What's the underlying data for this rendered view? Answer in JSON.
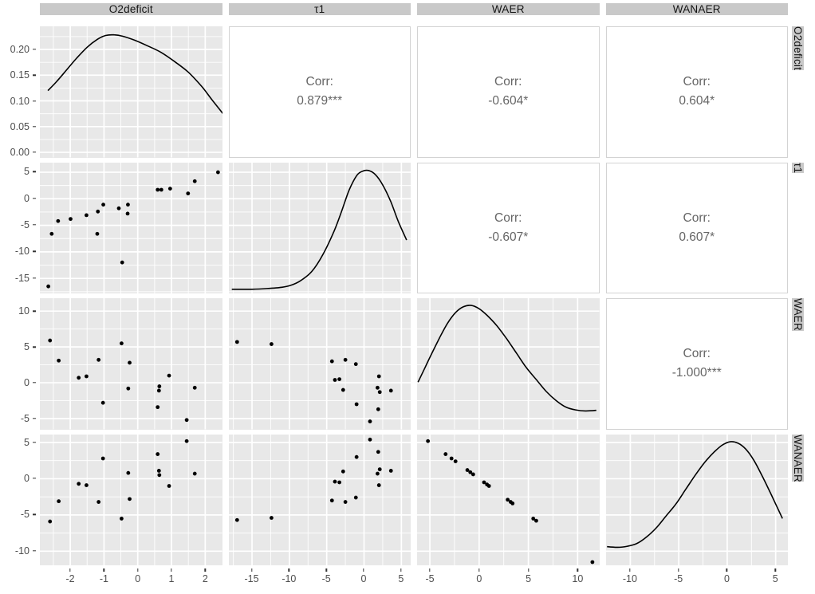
{
  "colors": {
    "panel_bg": "#E8E8E8",
    "strip_bg": "#C9C9C9",
    "grid": "#FFFFFF",
    "point": "#000000",
    "density_line": "#000000",
    "corr_text": "#666666",
    "axis_text": "#4D4D4D",
    "strip_text": "#141414",
    "corr_border": "#D3D3D3",
    "tick_mark": "#333333"
  },
  "chart_data": {
    "type": "scatter",
    "subtype": "scatterplot-matrix-ggpairs",
    "title": "",
    "variables": [
      "O2deficit",
      "τ1",
      "WAER",
      "WANAER"
    ],
    "legend": "none",
    "grid": "on",
    "corr_prefix": "Corr:",
    "correlations": [
      {
        "pair": [
          "O2deficit",
          "τ1"
        ],
        "value": "0.879***"
      },
      {
        "pair": [
          "O2deficit",
          "WAER"
        ],
        "value": "-0.604*"
      },
      {
        "pair": [
          "O2deficit",
          "WANAER"
        ],
        "value": "0.604*"
      },
      {
        "pair": [
          "τ1",
          "WAER"
        ],
        "value": "-0.607*"
      },
      {
        "pair": [
          "τ1",
          "WANAER"
        ],
        "value": "0.607*"
      },
      {
        "pair": [
          "WAER",
          "WANAER"
        ],
        "value": "-1.000***"
      }
    ],
    "columns": [
      {
        "var": "O2deficit",
        "range": [
          -2.9,
          2.5
        ],
        "ticks": [
          -2,
          -1,
          0,
          1,
          2
        ],
        "tick_labels": [
          "-2",
          "-1",
          "0",
          "1",
          "2"
        ]
      },
      {
        "var": "τ1",
        "range": [
          -18.1,
          6.3
        ],
        "ticks": [
          -15,
          -10,
          -5,
          0,
          5
        ],
        "tick_labels": [
          "-15",
          "-10",
          "-5",
          "0",
          "5"
        ]
      },
      {
        "var": "WAER",
        "range": [
          -6.3,
          12.2
        ],
        "ticks": [
          -5,
          0,
          5,
          10
        ],
        "tick_labels": [
          "-5",
          "0",
          "5",
          "10"
        ]
      },
      {
        "var": "WANAER",
        "range": [
          -12.5,
          6.3
        ],
        "ticks": [
          -10,
          -5,
          0,
          5
        ],
        "tick_labels": [
          "-10",
          "-5",
          "0",
          "5"
        ]
      }
    ],
    "rows": [
      {
        "var": "O2deficit",
        "range": [
          -0.01,
          0.245
        ],
        "ticks": [
          0,
          0.05,
          0.1,
          0.15,
          0.2
        ],
        "tick_labels": [
          "0.00",
          "0.05",
          "0.10",
          "0.15",
          "0.20"
        ]
      },
      {
        "var": "τ1",
        "range": [
          -17.9,
          6.8
        ],
        "ticks": [
          -15,
          -10,
          -5,
          0,
          5
        ],
        "tick_labels": [
          "-15",
          "-10",
          "-5",
          "0",
          "5"
        ]
      },
      {
        "var": "WAER",
        "range": [
          -6.5,
          11.8
        ],
        "ticks": [
          -5,
          0,
          5,
          10
        ],
        "tick_labels": [
          "-5",
          "0",
          "5",
          "10"
        ]
      },
      {
        "var": "WANAER",
        "range": [
          -12.0,
          6.1
        ],
        "ticks": [
          -10,
          -5,
          0,
          5
        ],
        "tick_labels": [
          "-10",
          "-5",
          "0",
          "5"
        ]
      }
    ],
    "panels": {
      "r1c1": {
        "kind": "density",
        "var": "O2deficit",
        "curve": [
          [
            -2.66,
            0.51
          ],
          [
            -2.4,
            0.58
          ],
          [
            -2.1,
            0.67
          ],
          [
            -1.8,
            0.76
          ],
          [
            -1.5,
            0.84
          ],
          [
            -1.2,
            0.9
          ],
          [
            -0.95,
            0.93
          ],
          [
            -0.7,
            0.935
          ],
          [
            -0.45,
            0.925
          ],
          [
            -0.1,
            0.895
          ],
          [
            0.3,
            0.85
          ],
          [
            0.7,
            0.8
          ],
          [
            1.1,
            0.73
          ],
          [
            1.5,
            0.65
          ],
          [
            1.9,
            0.54
          ],
          [
            2.2,
            0.44
          ],
          [
            2.54,
            0.33
          ]
        ]
      },
      "r1c2": {
        "kind": "corr",
        "label": "Corr:",
        "value": "0.879***"
      },
      "r1c3": {
        "kind": "corr",
        "label": "Corr:",
        "value": "-0.604*"
      },
      "r1c4": {
        "kind": "corr",
        "label": "Corr:",
        "value": "0.604*"
      },
      "r2c1": {
        "kind": "scatter",
        "x_var": "O2deficit",
        "y_var": "τ1",
        "points": [
          [
            -2.65,
            -16.5
          ],
          [
            -2.55,
            -6.6
          ],
          [
            -2.36,
            -4.2
          ],
          [
            -1.99,
            -3.8
          ],
          [
            -1.52,
            -3.1
          ],
          [
            -1.2,
            -6.6
          ],
          [
            -1.18,
            -2.4
          ],
          [
            -1.02,
            -1.1
          ],
          [
            -0.56,
            -1.8
          ],
          [
            -0.46,
            -12.0
          ],
          [
            -0.3,
            -2.8
          ],
          [
            -0.29,
            -1.1
          ],
          [
            0.59,
            1.7
          ],
          [
            0.7,
            1.7
          ],
          [
            0.96,
            1.9
          ],
          [
            1.49,
            1.0
          ],
          [
            1.69,
            3.3
          ],
          [
            2.38,
            5.0
          ]
        ]
      },
      "r2c2": {
        "kind": "density",
        "var": "τ1",
        "curve": [
          [
            -17.7,
            0.035
          ],
          [
            -15,
            0.035
          ],
          [
            -13,
            0.04
          ],
          [
            -11,
            0.05
          ],
          [
            -9.8,
            0.065
          ],
          [
            -8.5,
            0.1
          ],
          [
            -7,
            0.17
          ],
          [
            -5.5,
            0.3
          ],
          [
            -4,
            0.48
          ],
          [
            -3,
            0.63
          ],
          [
            -2,
            0.79
          ],
          [
            -1,
            0.9
          ],
          [
            -0.2,
            0.935
          ],
          [
            0.6,
            0.94
          ],
          [
            1.5,
            0.91
          ],
          [
            2.5,
            0.83
          ],
          [
            3.6,
            0.7
          ],
          [
            4.6,
            0.55
          ],
          [
            5.7,
            0.41
          ]
        ]
      },
      "r2c3": {
        "kind": "corr",
        "label": "Corr:",
        "value": "-0.607*"
      },
      "r2c4": {
        "kind": "corr",
        "label": "Corr:",
        "value": "0.607*"
      },
      "r3c1": {
        "kind": "scatter",
        "x_var": "O2deficit",
        "y_var": "WAER",
        "points": [
          [
            -2.6,
            5.9
          ],
          [
            -2.34,
            3.1
          ],
          [
            -1.75,
            0.7
          ],
          [
            -1.52,
            0.9
          ],
          [
            -1.16,
            3.2
          ],
          [
            -1.03,
            -2.8
          ],
          [
            -0.48,
            5.5
          ],
          [
            -0.28,
            -0.8
          ],
          [
            -0.24,
            2.8
          ],
          [
            0.59,
            -3.4
          ],
          [
            0.63,
            -1.1
          ],
          [
            0.64,
            -0.5
          ],
          [
            0.93,
            1.0
          ],
          [
            1.45,
            -5.2
          ],
          [
            1.69,
            -0.7
          ]
        ]
      },
      "r3c2": {
        "kind": "scatter",
        "x_var": "τ1",
        "y_var": "WAER",
        "points": [
          [
            -17.0,
            5.7
          ],
          [
            -12.4,
            5.4
          ],
          [
            -4.3,
            3.0
          ],
          [
            -2.5,
            3.2
          ],
          [
            -1.1,
            2.6
          ],
          [
            -3.9,
            0.4
          ],
          [
            -3.3,
            0.5
          ],
          [
            -2.8,
            -1.0
          ],
          [
            2.0,
            0.9
          ],
          [
            1.8,
            -0.7
          ],
          [
            2.1,
            -1.3
          ],
          [
            3.6,
            -1.1
          ],
          [
            -1.0,
            -3.0
          ],
          [
            1.9,
            -3.7
          ],
          [
            0.8,
            -5.4
          ]
        ]
      },
      "r3c3": {
        "kind": "density",
        "var": "WAER",
        "curve": [
          [
            -6.2,
            0.36
          ],
          [
            -5.5,
            0.47
          ],
          [
            -4.8,
            0.58
          ],
          [
            -4,
            0.7
          ],
          [
            -3.2,
            0.81
          ],
          [
            -2.4,
            0.89
          ],
          [
            -1.6,
            0.935
          ],
          [
            -0.8,
            0.945
          ],
          [
            0,
            0.92
          ],
          [
            0.8,
            0.87
          ],
          [
            1.8,
            0.79
          ],
          [
            2.8,
            0.69
          ],
          [
            3.8,
            0.58
          ],
          [
            4.8,
            0.47
          ],
          [
            5.8,
            0.38
          ],
          [
            6.8,
            0.29
          ],
          [
            7.8,
            0.22
          ],
          [
            8.8,
            0.17
          ],
          [
            9.8,
            0.148
          ],
          [
            10.8,
            0.14
          ],
          [
            11.9,
            0.145
          ]
        ]
      },
      "r3c4": {
        "kind": "corr",
        "label": "Corr:",
        "value": "-1.000***"
      },
      "r4c1": {
        "kind": "scatter",
        "x_var": "O2deficit",
        "y_var": "WANAER",
        "points": [
          [
            -2.6,
            -5.9
          ],
          [
            -2.34,
            -3.1
          ],
          [
            -1.75,
            -0.7
          ],
          [
            -1.52,
            -0.9
          ],
          [
            -1.16,
            -3.2
          ],
          [
            -1.03,
            2.8
          ],
          [
            -0.48,
            -5.5
          ],
          [
            -0.28,
            0.8
          ],
          [
            -0.24,
            -2.8
          ],
          [
            0.59,
            3.4
          ],
          [
            0.63,
            1.1
          ],
          [
            0.64,
            0.5
          ],
          [
            0.93,
            -1.0
          ],
          [
            1.45,
            5.2
          ],
          [
            1.69,
            0.7
          ]
        ]
      },
      "r4c2": {
        "kind": "scatter",
        "x_var": "τ1",
        "y_var": "WANAER",
        "points": [
          [
            -17.0,
            -5.7
          ],
          [
            -12.4,
            -5.4
          ],
          [
            -4.3,
            -3.0
          ],
          [
            -2.5,
            -3.2
          ],
          [
            -1.1,
            -2.6
          ],
          [
            -3.9,
            -0.4
          ],
          [
            -3.3,
            -0.5
          ],
          [
            -2.8,
            1.0
          ],
          [
            2.0,
            -0.9
          ],
          [
            1.8,
            0.7
          ],
          [
            2.1,
            1.3
          ],
          [
            3.6,
            1.1
          ],
          [
            -1.0,
            3.0
          ],
          [
            1.9,
            3.7
          ],
          [
            0.8,
            5.4
          ]
        ]
      },
      "r4c3": {
        "kind": "scatter",
        "x_var": "WAER",
        "y_var": "WANAER",
        "points": [
          [
            -5.2,
            5.2
          ],
          [
            -3.4,
            3.4
          ],
          [
            -2.8,
            2.8
          ],
          [
            -2.4,
            2.4
          ],
          [
            -1.2,
            1.2
          ],
          [
            -0.9,
            0.9
          ],
          [
            -0.6,
            0.6
          ],
          [
            0.5,
            -0.5
          ],
          [
            0.8,
            -0.8
          ],
          [
            1.0,
            -1.0
          ],
          [
            2.9,
            -2.9
          ],
          [
            3.2,
            -3.2
          ],
          [
            3.4,
            -3.4
          ],
          [
            5.5,
            -5.5
          ],
          [
            5.8,
            -5.8
          ],
          [
            11.5,
            -11.5
          ]
        ]
      },
      "r4c4": {
        "kind": "density",
        "var": "WANAER",
        "curve": [
          [
            -12.4,
            0.145
          ],
          [
            -11.3,
            0.14
          ],
          [
            -10.3,
            0.148
          ],
          [
            -9.3,
            0.17
          ],
          [
            -8.3,
            0.22
          ],
          [
            -7.3,
            0.29
          ],
          [
            -6.3,
            0.38
          ],
          [
            -5.3,
            0.47
          ],
          [
            -4.3,
            0.58
          ],
          [
            -3.3,
            0.69
          ],
          [
            -2.3,
            0.79
          ],
          [
            -1.3,
            0.87
          ],
          [
            -0.5,
            0.92
          ],
          [
            0.3,
            0.945
          ],
          [
            1.1,
            0.935
          ],
          [
            1.9,
            0.89
          ],
          [
            2.7,
            0.81
          ],
          [
            3.5,
            0.7
          ],
          [
            4.3,
            0.58
          ],
          [
            5.0,
            0.47
          ],
          [
            5.7,
            0.36
          ]
        ]
      }
    }
  }
}
